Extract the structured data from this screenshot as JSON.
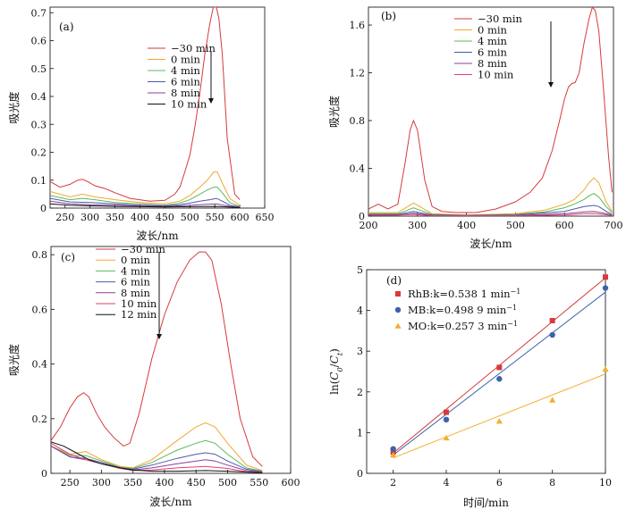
{
  "chart_data": [
    {
      "type": "line",
      "panel_label": "(a)",
      "xlabel": "波长/nm",
      "ylabel": "吸光度",
      "xlim": [
        220,
        650
      ],
      "ylim": [
        0,
        0.72
      ],
      "xticks": [
        250,
        300,
        350,
        400,
        450,
        500,
        550,
        600,
        650
      ],
      "yticks": [
        0,
        0.1,
        0.2,
        0.3,
        0.4,
        0.5,
        0.6,
        0.7
      ],
      "ytick_labels": [
        "0",
        "0.1",
        "0.2",
        "0.3",
        "0.4",
        "0.5",
        "0.6",
        "0.7"
      ],
      "legend_position": "top-center",
      "arrow": "down",
      "series": [
        {
          "name": "−30 min",
          "color": "#d63a3a",
          "x": [
            220,
            240,
            260,
            275,
            285,
            295,
            310,
            330,
            350,
            380,
            420,
            450,
            470,
            480,
            490,
            500,
            510,
            520,
            530,
            540,
            547,
            553,
            558,
            565,
            575,
            590,
            600
          ],
          "y": [
            0.095,
            0.075,
            0.085,
            0.1,
            0.103,
            0.095,
            0.08,
            0.07,
            0.055,
            0.035,
            0.025,
            0.028,
            0.05,
            0.075,
            0.13,
            0.19,
            0.29,
            0.41,
            0.55,
            0.66,
            0.72,
            0.72,
            0.68,
            0.55,
            0.25,
            0.05,
            0.03
          ]
        },
        {
          "name": "0 min",
          "color": "#f0a830",
          "x": [
            220,
            260,
            285,
            310,
            350,
            400,
            450,
            480,
            500,
            520,
            535,
            548,
            555,
            565,
            580,
            600
          ],
          "y": [
            0.06,
            0.04,
            0.05,
            0.04,
            0.03,
            0.02,
            0.015,
            0.025,
            0.045,
            0.075,
            0.1,
            0.13,
            0.13,
            0.09,
            0.035,
            0.01
          ]
        },
        {
          "name": "4 min",
          "color": "#5cb85c",
          "x": [
            220,
            260,
            285,
            310,
            350,
            400,
            450,
            480,
            500,
            520,
            535,
            548,
            555,
            565,
            580,
            600
          ],
          "y": [
            0.045,
            0.03,
            0.035,
            0.03,
            0.02,
            0.015,
            0.01,
            0.018,
            0.03,
            0.05,
            0.065,
            0.075,
            0.075,
            0.055,
            0.02,
            0.005
          ]
        },
        {
          "name": "6 min",
          "color": "#4b5aa8",
          "x": [
            220,
            260,
            300,
            350,
            400,
            450,
            480,
            500,
            520,
            540,
            553,
            565,
            580,
            600
          ],
          "y": [
            0.035,
            0.022,
            0.02,
            0.015,
            0.01,
            0.008,
            0.012,
            0.018,
            0.025,
            0.03,
            0.035,
            0.025,
            0.01,
            0.004
          ]
        },
        {
          "name": "8 min",
          "color": "#8a3fa0",
          "x": [
            220,
            260,
            300,
            350,
            400,
            450,
            500,
            540,
            553,
            580,
            600
          ],
          "y": [
            0.025,
            0.015,
            0.012,
            0.01,
            0.008,
            0.006,
            0.01,
            0.014,
            0.015,
            0.006,
            0.003
          ]
        },
        {
          "name": "10 min",
          "color": "#111111",
          "x": [
            220,
            260,
            300,
            350,
            400,
            450,
            500,
            553,
            600
          ],
          "y": [
            0.015,
            0.01,
            0.008,
            0.006,
            0.005,
            0.004,
            0.005,
            0.006,
            0.002
          ]
        }
      ]
    },
    {
      "type": "line",
      "panel_label": "(b)",
      "xlabel": "波长/nm",
      "ylabel": "吸光度",
      "xlim": [
        200,
        700
      ],
      "ylim": [
        0,
        1.75
      ],
      "xticks": [
        200,
        300,
        400,
        500,
        600,
        700
      ],
      "yticks": [
        0,
        0.4,
        0.8,
        1.2,
        1.6
      ],
      "ytick_labels": [
        "0",
        "0.4",
        "0.8",
        "1.2",
        "1.6"
      ],
      "legend_position": "top-center",
      "arrow": "down",
      "series": [
        {
          "name": "−30 min",
          "color": "#d63a3a",
          "x": [
            200,
            220,
            240,
            260,
            275,
            285,
            292,
            300,
            315,
            330,
            350,
            380,
            420,
            460,
            500,
            530,
            555,
            575,
            590,
            600,
            608,
            615,
            622,
            630,
            640,
            650,
            657,
            663,
            670,
            680,
            690,
            697
          ],
          "y": [
            0.06,
            0.1,
            0.06,
            0.1,
            0.45,
            0.72,
            0.8,
            0.72,
            0.3,
            0.08,
            0.04,
            0.03,
            0.03,
            0.06,
            0.12,
            0.2,
            0.32,
            0.55,
            0.8,
            0.98,
            1.08,
            1.11,
            1.12,
            1.2,
            1.45,
            1.65,
            1.75,
            1.72,
            1.55,
            1.05,
            0.5,
            0.2
          ]
        },
        {
          "name": "0 min",
          "color": "#f0a830",
          "x": [
            200,
            230,
            260,
            280,
            292,
            305,
            330,
            400,
            500,
            560,
            600,
            620,
            640,
            650,
            660,
            670,
            685,
            697
          ],
          "y": [
            0.03,
            0.03,
            0.03,
            0.08,
            0.11,
            0.08,
            0.02,
            0.01,
            0.02,
            0.05,
            0.1,
            0.14,
            0.22,
            0.28,
            0.32,
            0.28,
            0.12,
            0.04
          ]
        },
        {
          "name": "4 min",
          "color": "#5cb85c",
          "x": [
            200,
            260,
            280,
            292,
            305,
            330,
            400,
            500,
            560,
            600,
            620,
            640,
            650,
            660,
            670,
            685,
            697
          ],
          "y": [
            0.02,
            0.02,
            0.05,
            0.07,
            0.05,
            0.015,
            0.008,
            0.015,
            0.035,
            0.07,
            0.1,
            0.14,
            0.17,
            0.19,
            0.16,
            0.08,
            0.03
          ]
        },
        {
          "name": "6 min",
          "color": "#4b5aa8",
          "x": [
            200,
            260,
            292,
            330,
            400,
            500,
            600,
            620,
            640,
            660,
            670,
            685,
            697
          ],
          "y": [
            0.015,
            0.015,
            0.04,
            0.01,
            0.006,
            0.01,
            0.04,
            0.06,
            0.08,
            0.09,
            0.08,
            0.04,
            0.015
          ]
        },
        {
          "name": "8 min",
          "color": "#8a3fa0",
          "x": [
            200,
            260,
            292,
            330,
            400,
            500,
            600,
            640,
            660,
            685,
            697
          ],
          "y": [
            0.01,
            0.01,
            0.025,
            0.006,
            0.004,
            0.006,
            0.02,
            0.035,
            0.04,
            0.02,
            0.008
          ]
        },
        {
          "name": "10 min",
          "color": "#e0406a",
          "x": [
            200,
            260,
            292,
            330,
            400,
            500,
            600,
            640,
            660,
            685,
            697
          ],
          "y": [
            0.008,
            0.008,
            0.015,
            0.004,
            0.003,
            0.004,
            0.01,
            0.02,
            0.022,
            0.012,
            0.005
          ]
        }
      ]
    },
    {
      "type": "line",
      "panel_label": "(c)",
      "xlabel": "波长/nm",
      "ylabel": "吸光度",
      "xlim": [
        220,
        600
      ],
      "ylim": [
        0,
        0.83
      ],
      "xticks": [
        250,
        300,
        350,
        400,
        450,
        500,
        550,
        600
      ],
      "yticks": [
        0,
        0.2,
        0.4,
        0.6,
        0.8
      ],
      "ytick_labels": [
        "0",
        "0.2",
        "0.4",
        "0.6",
        "0.8"
      ],
      "legend_position": "top-center",
      "arrow": "down",
      "series": [
        {
          "name": "−30 min",
          "color": "#d63a3a",
          "x": [
            220,
            235,
            250,
            262,
            272,
            280,
            292,
            305,
            320,
            335,
            345,
            360,
            380,
            400,
            420,
            440,
            455,
            465,
            475,
            490,
            505,
            520,
            540,
            555
          ],
          "y": [
            0.12,
            0.17,
            0.24,
            0.28,
            0.295,
            0.28,
            0.22,
            0.17,
            0.13,
            0.1,
            0.11,
            0.22,
            0.42,
            0.58,
            0.7,
            0.78,
            0.81,
            0.81,
            0.78,
            0.62,
            0.4,
            0.2,
            0.06,
            0.025
          ]
        },
        {
          "name": "0 min",
          "color": "#f0a830",
          "x": [
            220,
            250,
            275,
            300,
            330,
            350,
            380,
            420,
            450,
            465,
            480,
            500,
            530,
            555
          ],
          "y": [
            0.1,
            0.07,
            0.08,
            0.05,
            0.025,
            0.02,
            0.05,
            0.12,
            0.17,
            0.185,
            0.17,
            0.11,
            0.03,
            0.01
          ]
        },
        {
          "name": "4 min",
          "color": "#5cb85c",
          "x": [
            220,
            250,
            275,
            300,
            330,
            350,
            380,
            420,
            450,
            465,
            480,
            500,
            530,
            555
          ],
          "y": [
            0.1,
            0.065,
            0.065,
            0.045,
            0.022,
            0.018,
            0.04,
            0.085,
            0.11,
            0.12,
            0.11,
            0.07,
            0.02,
            0.008
          ]
        },
        {
          "name": "6 min",
          "color": "#4b5aa8",
          "x": [
            220,
            250,
            275,
            300,
            330,
            350,
            380,
            420,
            450,
            465,
            480,
            500,
            530,
            555
          ],
          "y": [
            0.1,
            0.06,
            0.055,
            0.04,
            0.02,
            0.015,
            0.03,
            0.055,
            0.07,
            0.075,
            0.07,
            0.045,
            0.015,
            0.006
          ]
        },
        {
          "name": "8 min",
          "color": "#8a3fa0",
          "x": [
            220,
            250,
            275,
            300,
            330,
            350,
            380,
            420,
            450,
            465,
            480,
            500,
            530,
            555
          ],
          "y": [
            0.1,
            0.06,
            0.05,
            0.035,
            0.018,
            0.012,
            0.02,
            0.035,
            0.045,
            0.05,
            0.045,
            0.03,
            0.01,
            0.004
          ]
        },
        {
          "name": "10 min",
          "color": "#e0406a",
          "x": [
            220,
            250,
            275,
            300,
            330,
            350,
            380,
            420,
            465,
            500,
            530,
            555
          ],
          "y": [
            0.11,
            0.07,
            0.05,
            0.035,
            0.018,
            0.01,
            0.012,
            0.02,
            0.025,
            0.018,
            0.006,
            0.003
          ]
        },
        {
          "name": "12 min",
          "color": "#111111",
          "x": [
            220,
            240,
            260,
            280,
            300,
            330,
            350,
            380,
            420,
            465,
            500,
            555
          ],
          "y": [
            0.115,
            0.1,
            0.075,
            0.05,
            0.035,
            0.02,
            0.012,
            0.008,
            0.008,
            0.01,
            0.008,
            0.002
          ]
        }
      ]
    },
    {
      "type": "scatter",
      "panel_label": "(d)",
      "xlabel": "时间/min",
      "ylabel": "ln(C0/Ct)",
      "xlim": [
        1,
        10
      ],
      "ylim": [
        0,
        5
      ],
      "xticks": [
        2,
        4,
        6,
        8,
        10
      ],
      "yticks": [
        0,
        1,
        2,
        3,
        4,
        5
      ],
      "legend_position": "top-left",
      "series": [
        {
          "name": "RhB",
          "k_label": "k=0.538 1 min",
          "unit_sup": "−1",
          "color": "#d63a3a",
          "marker": "square",
          "x": [
            2,
            4,
            6,
            8,
            10
          ],
          "y": [
            0.52,
            1.5,
            2.6,
            3.75,
            4.82
          ],
          "fit": {
            "x": [
              2,
              10
            ],
            "y": [
              0.5,
              4.8
            ]
          }
        },
        {
          "name": "MB",
          "k_label": "k=0.498 9 min",
          "unit_sup": "−1",
          "color": "#3d63a8",
          "marker": "circle",
          "x": [
            2,
            4,
            6,
            8,
            10
          ],
          "y": [
            0.6,
            1.32,
            2.32,
            3.4,
            4.55
          ],
          "fit": {
            "x": [
              2,
              10
            ],
            "y": [
              0.45,
              4.45
            ]
          }
        },
        {
          "name": "MO",
          "k_label": "k=0.257 3 min",
          "unit_sup": "−1",
          "color": "#f0b030",
          "marker": "triangle",
          "x": [
            2,
            4,
            6,
            8,
            10
          ],
          "y": [
            0.45,
            0.87,
            1.28,
            1.8,
            2.56
          ],
          "fit": {
            "x": [
              2,
              10
            ],
            "y": [
              0.38,
              2.44
            ]
          }
        }
      ]
    }
  ]
}
